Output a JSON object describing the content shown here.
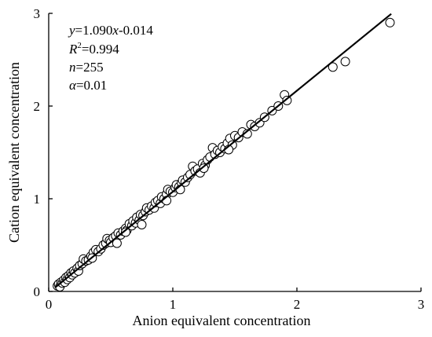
{
  "chart_data": {
    "type": "scatter",
    "xlabel": "Anion equivalent concentration",
    "ylabel": "Cation equivalent concentration",
    "xlim": [
      0,
      3
    ],
    "ylim": [
      0,
      3
    ],
    "xticks": [
      "0",
      "1",
      "2",
      "3"
    ],
    "yticks": [
      "0",
      "1",
      "2",
      "3"
    ],
    "grid": false,
    "annotations": {
      "equation": "y=1.090x-0.014",
      "r2": "R2=0.994",
      "n": "n=255",
      "alpha": "α=0.01"
    },
    "fit_line": {
      "slope": 1.09,
      "intercept": -0.014,
      "x_range": [
        0.05,
        2.76
      ]
    },
    "points": [
      [
        0.07,
        0.06
      ],
      [
        0.08,
        0.08
      ],
      [
        0.09,
        0.05
      ],
      [
        0.1,
        0.1
      ],
      [
        0.11,
        0.09
      ],
      [
        0.12,
        0.12
      ],
      [
        0.13,
        0.1
      ],
      [
        0.14,
        0.15
      ],
      [
        0.15,
        0.13
      ],
      [
        0.16,
        0.17
      ],
      [
        0.17,
        0.15
      ],
      [
        0.18,
        0.2
      ],
      [
        0.19,
        0.18
      ],
      [
        0.2,
        0.22
      ],
      [
        0.21,
        0.2
      ],
      [
        0.23,
        0.25
      ],
      [
        0.24,
        0.22
      ],
      [
        0.25,
        0.28
      ],
      [
        0.27,
        0.3
      ],
      [
        0.28,
        0.35
      ],
      [
        0.3,
        0.33
      ],
      [
        0.32,
        0.34
      ],
      [
        0.34,
        0.38
      ],
      [
        0.36,
        0.42
      ],
      [
        0.38,
        0.45
      ],
      [
        0.4,
        0.43
      ],
      [
        0.42,
        0.46
      ],
      [
        0.44,
        0.5
      ],
      [
        0.46,
        0.52
      ],
      [
        0.47,
        0.57
      ],
      [
        0.49,
        0.55
      ],
      [
        0.5,
        0.53
      ],
      [
        0.52,
        0.58
      ],
      [
        0.54,
        0.6
      ],
      [
        0.56,
        0.63
      ],
      [
        0.58,
        0.61
      ],
      [
        0.6,
        0.65
      ],
      [
        0.62,
        0.68
      ],
      [
        0.63,
        0.66
      ],
      [
        0.65,
        0.73
      ],
      [
        0.67,
        0.71
      ],
      [
        0.68,
        0.76
      ],
      [
        0.7,
        0.74
      ],
      [
        0.71,
        0.8
      ],
      [
        0.73,
        0.77
      ],
      [
        0.74,
        0.83
      ],
      [
        0.76,
        0.82
      ],
      [
        0.78,
        0.86
      ],
      [
        0.79,
        0.9
      ],
      [
        0.81,
        0.88
      ],
      [
        0.83,
        0.92
      ],
      [
        0.85,
        0.9
      ],
      [
        0.86,
        0.96
      ],
      [
        0.88,
        0.98
      ],
      [
        0.9,
        0.95
      ],
      [
        0.91,
        1.02
      ],
      [
        0.93,
        1.0
      ],
      [
        0.95,
        1.05
      ],
      [
        0.96,
        1.1
      ],
      [
        0.98,
        1.08
      ],
      [
        1.0,
        1.07
      ],
      [
        1.02,
        1.12
      ],
      [
        1.03,
        1.15
      ],
      [
        1.05,
        1.13
      ],
      [
        1.07,
        1.17
      ],
      [
        1.08,
        1.2
      ],
      [
        1.1,
        1.18
      ],
      [
        1.12,
        1.23
      ],
      [
        1.14,
        1.26
      ],
      [
        1.16,
        1.35
      ],
      [
        1.18,
        1.3
      ],
      [
        1.2,
        1.32
      ],
      [
        1.22,
        1.28
      ],
      [
        1.24,
        1.38
      ],
      [
        1.26,
        1.36
      ],
      [
        1.28,
        1.42
      ],
      [
        1.3,
        1.45
      ],
      [
        1.32,
        1.55
      ],
      [
        1.34,
        1.48
      ],
      [
        1.36,
        1.52
      ],
      [
        1.38,
        1.5
      ],
      [
        1.4,
        1.56
      ],
      [
        1.42,
        1.54
      ],
      [
        1.44,
        1.6
      ],
      [
        1.46,
        1.65
      ],
      [
        1.48,
        1.58
      ],
      [
        1.5,
        1.68
      ],
      [
        1.53,
        1.66
      ],
      [
        1.56,
        1.72
      ],
      [
        1.6,
        1.7
      ],
      [
        1.63,
        1.8
      ],
      [
        1.66,
        1.78
      ],
      [
        1.7,
        1.82
      ],
      [
        1.74,
        1.88
      ],
      [
        1.8,
        1.95
      ],
      [
        1.85,
        2.0
      ],
      [
        1.9,
        2.12
      ],
      [
        1.92,
        2.06
      ],
      [
        2.29,
        2.42
      ],
      [
        2.39,
        2.48
      ],
      [
        2.75,
        2.9
      ],
      [
        0.55,
        0.52
      ],
      [
        0.75,
        0.72
      ],
      [
        0.95,
        0.98
      ],
      [
        1.25,
        1.33
      ],
      [
        0.35,
        0.36
      ],
      [
        0.62,
        0.64
      ],
      [
        1.06,
        1.1
      ],
      [
        1.45,
        1.53
      ]
    ]
  }
}
